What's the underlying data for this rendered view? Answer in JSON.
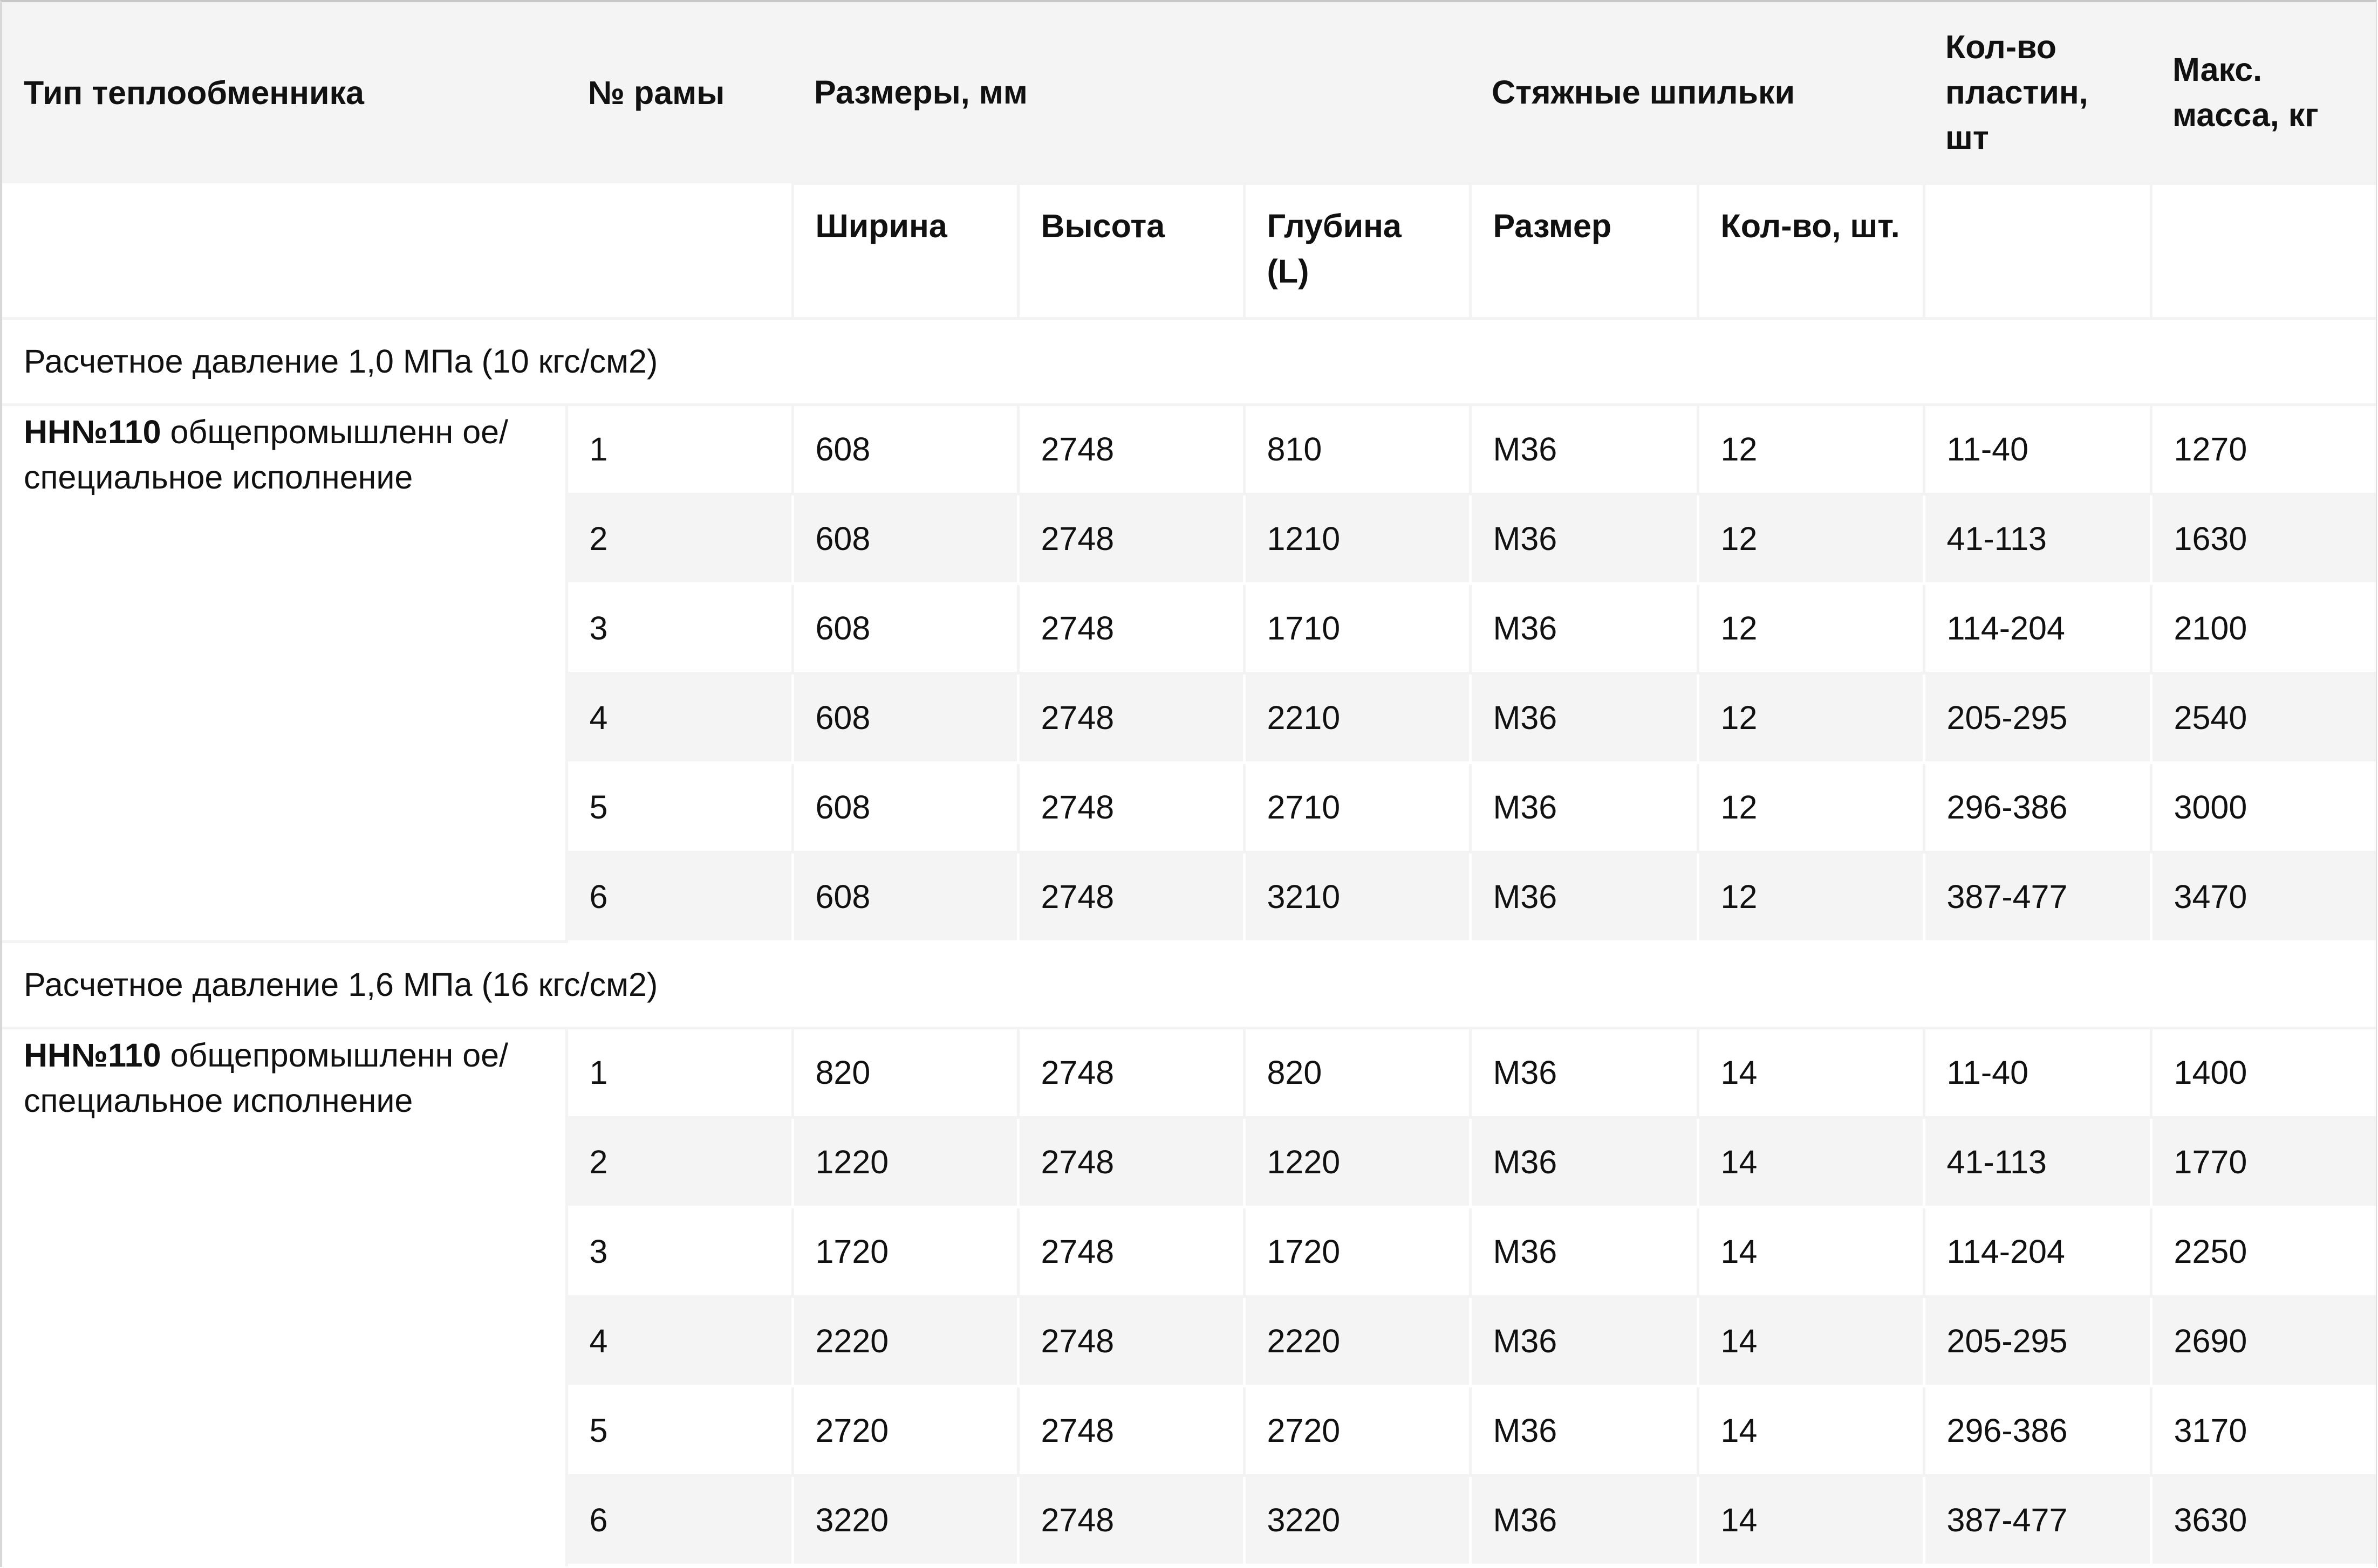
{
  "headers": {
    "type": "Тип теплообменника",
    "frame": "№ рамы",
    "dimensions": "Размеры, мм",
    "studs": "Стяжные шпильки",
    "plates": "Кол-во пластин, шт",
    "mass": "Макс. масса, кг",
    "width": "Ширина",
    "height": "Высота",
    "depth": "Глубина (L)",
    "stud_size": "Размер",
    "stud_count": "Кол-во, шт."
  },
  "sections": [
    {
      "title": "Расчетное давление 1,0 МПа (10 кгс/см2)",
      "type_bold": "НН№110",
      "type_rest": " общепромышленн ое/ специальное исполнение",
      "rows": [
        [
          "1",
          "608",
          "2748",
          "810",
          "М36",
          "12",
          "11-40",
          "1270"
        ],
        [
          "2",
          "608",
          "2748",
          "1210",
          "М36",
          "12",
          "41-113",
          "1630"
        ],
        [
          "3",
          "608",
          "2748",
          "1710",
          "М36",
          "12",
          "114-204",
          "2100"
        ],
        [
          "4",
          "608",
          "2748",
          "2210",
          "М36",
          "12",
          "205-295",
          "2540"
        ],
        [
          "5",
          "608",
          "2748",
          "2710",
          "М36",
          "12",
          "296-386",
          "3000"
        ],
        [
          "6",
          "608",
          "2748",
          "3210",
          "М36",
          "12",
          "387-477",
          "3470"
        ]
      ]
    },
    {
      "title": "Расчетное давление 1,6 МПа (16 кгс/см2)",
      "type_bold": "НН№110",
      "type_rest": " общепромышленн ое/ специальное исполнение",
      "rows": [
        [
          "1",
          "820",
          "2748",
          "820",
          "М36",
          "14",
          "11-40",
          "1400"
        ],
        [
          "2",
          "1220",
          "2748",
          "1220",
          "М36",
          "14",
          "41-113",
          "1770"
        ],
        [
          "3",
          "1720",
          "2748",
          "1720",
          "М36",
          "14",
          "114-204",
          "2250"
        ],
        [
          "4",
          "2220",
          "2748",
          "2220",
          "М36",
          "14",
          "205-295",
          "2690"
        ],
        [
          "5",
          "2720",
          "2748",
          "2720",
          "М36",
          "14",
          "296-386",
          "3170"
        ],
        [
          "6",
          "3220",
          "2748",
          "3220",
          "М36",
          "14",
          "387-477",
          "3630"
        ]
      ]
    }
  ]
}
